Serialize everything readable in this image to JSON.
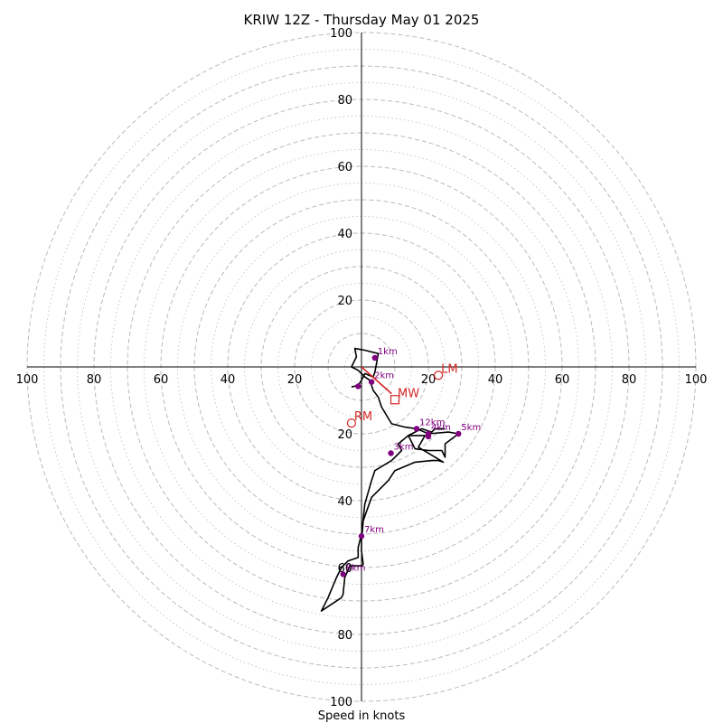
{
  "chart_data": {
    "type": "line",
    "title": "KRIW 12Z - Thursday May 01 2025",
    "xlabel": "Speed in knots",
    "ylabel": "",
    "xlim": [
      -100,
      100
    ],
    "ylim": [
      -100,
      100
    ],
    "ticks": {
      "x": [
        "100",
        "80",
        "60",
        "40",
        "20",
        "20",
        "40",
        "60",
        "80",
        "100"
      ],
      "y": [
        "100",
        "80",
        "60",
        "40",
        "20",
        "20",
        "40",
        "60",
        "80",
        "100"
      ]
    },
    "grid": {
      "major_rings": [
        10,
        20,
        30,
        40,
        50,
        60,
        70,
        80,
        90,
        100
      ],
      "minor_rings": [
        5,
        15,
        25,
        35,
        45,
        55,
        65,
        75,
        85,
        95
      ]
    },
    "colors": {
      "hodograph": "#000000",
      "height_markers": "#800080",
      "motion": "#d62728",
      "grid": "#bbbbbb"
    },
    "series": [
      {
        "values": [
          [
            -3,
            6
          ],
          [
            -1,
            5.5
          ],
          [
            0,
            4
          ],
          [
            1,
            2
          ],
          [
            3.5,
            3
          ],
          [
            4,
            1.5
          ],
          [
            4.5,
            -1
          ],
          [
            5,
            -4
          ],
          [
            3,
            -4.5
          ],
          [
            1,
            -5
          ],
          [
            -2,
            -5.5
          ],
          [
            -1.5,
            -3
          ],
          [
            -3,
            0
          ],
          [
            -1,
            1
          ],
          [
            0,
            2
          ],
          [
            1,
            3
          ],
          [
            2.5,
            4
          ],
          [
            3.5,
            7
          ],
          [
            5,
            9
          ],
          [
            6,
            12
          ],
          [
            9,
            17
          ],
          [
            13,
            18
          ],
          [
            16.5,
            18.5
          ],
          [
            20,
            20
          ],
          [
            26,
            19.5
          ],
          [
            29,
            20
          ],
          [
            25,
            23
          ],
          [
            25,
            27
          ],
          [
            24,
            25
          ],
          [
            20,
            25
          ],
          [
            16,
            24.5
          ],
          [
            14,
            20.5
          ],
          [
            19,
            20.5
          ],
          [
            17,
            24
          ],
          [
            24.5,
            28.5
          ],
          [
            23,
            28
          ],
          [
            21,
            28
          ],
          [
            16,
            28.5
          ],
          [
            10,
            31
          ],
          [
            8,
            34
          ],
          [
            3,
            39
          ],
          [
            0.5,
            46
          ],
          [
            0,
            52
          ],
          [
            0,
            55
          ],
          [
            0.5,
            59
          ],
          [
            0,
            59.5
          ],
          [
            -3.5,
            59.5
          ],
          [
            -5,
            63
          ],
          [
            -5.5,
            68
          ],
          [
            -6,
            69
          ],
          [
            -12,
            73
          ],
          [
            -10,
            69
          ],
          [
            -7.5,
            63
          ],
          [
            -6,
            60
          ],
          [
            -4,
            58
          ],
          [
            -1,
            57
          ],
          [
            -1,
            54
          ],
          [
            0,
            50
          ],
          [
            1,
            41
          ],
          [
            3,
            34
          ],
          [
            4,
            31
          ],
          [
            9,
            28
          ],
          [
            10,
            27
          ],
          [
            12,
            25
          ],
          [
            11,
            23
          ],
          [
            14,
            20.5
          ],
          [
            17,
            19
          ],
          [
            18,
            18.5
          ],
          [
            21,
            19.5
          ],
          [
            22,
            18.5
          ],
          [
            25,
            18.5
          ]
        ]
      }
    ],
    "height_markers": [
      {
        "label": "1km",
        "u": 4,
        "v": 2.7
      },
      {
        "label": "2km",
        "u": 3,
        "v": -4.5
      },
      {
        "label": "3km",
        "u": 8.8,
        "v": -25.8
      },
      {
        "label": "4km",
        "u": 20,
        "v": -20
      },
      {
        "label": "5km",
        "u": 29,
        "v": -20
      },
      {
        "label": "7km",
        "u": 0,
        "v": -50.6
      },
      {
        "label": "8km",
        "u": -5.5,
        "v": -62
      },
      {
        "label": "12km",
        "u": 16.5,
        "v": -18.5
      },
      {
        "label": "",
        "u": -1,
        "v": -5.8
      },
      {
        "label": "",
        "u": 20,
        "v": -20.8
      }
    ],
    "motion_markers": [
      {
        "label": "LM",
        "u": 23,
        "v": -2.5,
        "shape": "circle"
      },
      {
        "label": "MW",
        "u": 10,
        "v": -9.8,
        "shape": "square"
      },
      {
        "label": "RM",
        "u": -3,
        "v": -16.8,
        "shape": "circle"
      }
    ],
    "shear_vector": {
      "from": [
        0,
        0
      ],
      "to": [
        9,
        -8
      ]
    }
  }
}
